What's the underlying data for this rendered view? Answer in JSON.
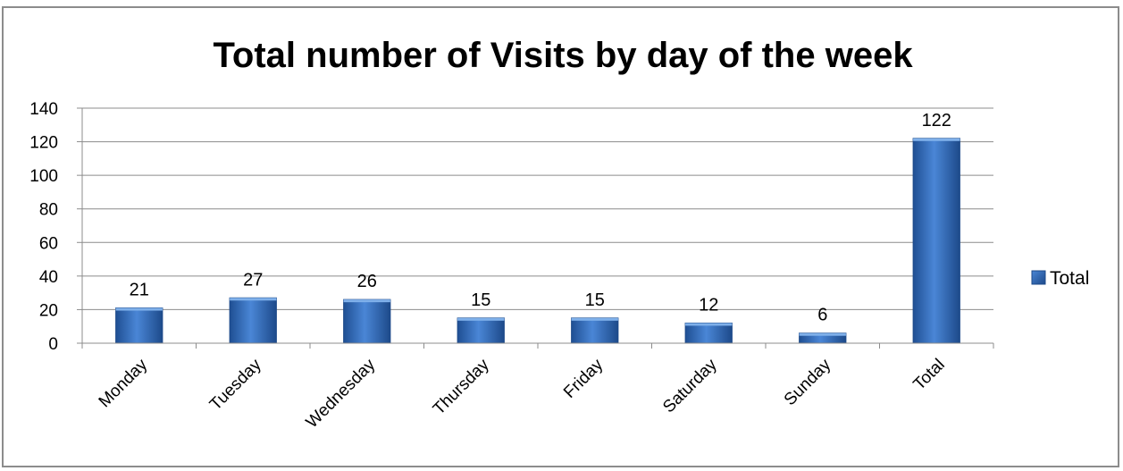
{
  "chart_data": {
    "type": "bar",
    "title": "Total number of Visits by day of the week",
    "xlabel": "",
    "ylabel": "",
    "categories": [
      "Monday",
      "Tuesday",
      "Wednesday",
      "Thursday",
      "Friday",
      "Saturday",
      "Sunday",
      "Total"
    ],
    "series": [
      {
        "name": "Total",
        "values": [
          21,
          27,
          26,
          15,
          15,
          12,
          6,
          122
        ],
        "color": "#3a73c4"
      }
    ],
    "yticks": [
      "0",
      "20",
      "40",
      "60",
      "80",
      "100",
      "120",
      "140"
    ],
    "ylim": [
      0,
      140
    ],
    "grid": true,
    "legend_position": "right",
    "data_labels": true
  }
}
